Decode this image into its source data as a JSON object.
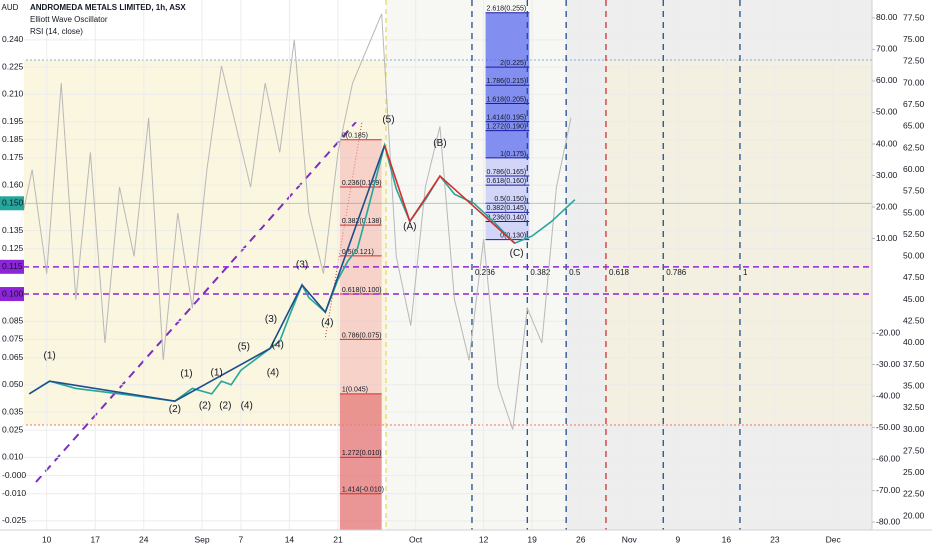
{
  "header": {
    "currency": "AUD",
    "title": "ANDROMEDA METALS LIMITED, 1h, ASX",
    "indicators": [
      "Elliott Wave Oscillator",
      "RSI (14, close)"
    ]
  },
  "chart_data": {
    "type": "line",
    "xlim": [
      -4.5,
      85
    ],
    "xticks": [
      {
        "value": 0,
        "label": "10"
      },
      {
        "value": 5,
        "label": "17"
      },
      {
        "value": 10,
        "label": "24"
      },
      {
        "value": 16,
        "label": "Sep"
      },
      {
        "value": 20,
        "label": "7"
      },
      {
        "value": 25,
        "label": "14"
      },
      {
        "value": 30,
        "label": "21"
      },
      {
        "value": 38,
        "label": "Oct"
      },
      {
        "value": 45,
        "label": "12"
      },
      {
        "value": 50,
        "label": "19"
      },
      {
        "value": 55,
        "label": "26"
      },
      {
        "value": 60,
        "label": "Nov"
      },
      {
        "value": 65,
        "label": "9"
      },
      {
        "value": 70,
        "label": "16"
      },
      {
        "value": 75,
        "label": "23"
      },
      {
        "value": 81,
        "label": "Dec"
      }
    ],
    "ylim": [
      -0.03,
      0.262
    ],
    "yticks": [
      {
        "value": 0.24,
        "label": "0.240"
      },
      0.225,
      {
        "value": 0.21,
        "label": "0.210"
      },
      0.195,
      0.185,
      0.175,
      {
        "value": 0.16,
        "label": "0.160"
      },
      0.135,
      0.125,
      0.085,
      0.075,
      0.065,
      {
        "value": 0.05,
        "label": "0.050"
      },
      0.035,
      0.025,
      {
        "value": 0.01,
        "label": "0.010"
      },
      {
        "value": 0,
        "label": "-0.000"
      },
      {
        "value": -0.01,
        "label": "-0.010"
      },
      -0.025
    ],
    "y2lim": [
      -82.5,
      85.7
    ],
    "y2ticks": [
      {
        "value": 80,
        "label": "80.00"
      },
      {
        "value": 70,
        "label": "70.00"
      },
      {
        "value": 60,
        "label": "60.00"
      },
      {
        "value": 50,
        "label": "50.00"
      },
      {
        "value": 40,
        "label": "40.00"
      },
      {
        "value": 30,
        "label": "30.00"
      },
      {
        "value": 20,
        "label": "20.00"
      },
      {
        "value": 10,
        "label": "10.00"
      },
      {
        "value": -20,
        "label": "-20.00"
      },
      {
        "value": -30,
        "label": "-30.00"
      },
      {
        "value": -40,
        "label": "-40.00"
      },
      {
        "value": -50,
        "label": "-50.00"
      },
      {
        "value": -60,
        "label": "-60.00"
      },
      {
        "value": -70,
        "label": "-70.00"
      },
      {
        "value": -80,
        "label": "-80.00"
      }
    ],
    "y3lim": [
      18.4,
      79.6
    ],
    "y3ticks": [
      {
        "value": 77.5,
        "label": "77.50"
      },
      {
        "value": 75,
        "label": "75.00"
      },
      {
        "value": 72.5,
        "label": "72.50"
      },
      {
        "value": 70,
        "label": "70.00"
      },
      {
        "value": 67.5,
        "label": "67.50"
      },
      {
        "value": 65,
        "label": "65.00"
      },
      {
        "value": 62.5,
        "label": "62.50"
      },
      {
        "value": 60,
        "label": "60.00"
      },
      {
        "value": 57.5,
        "label": "57.50"
      },
      {
        "value": 55,
        "label": "55.00"
      },
      {
        "value": 52.5,
        "label": "52.50"
      },
      {
        "value": 50,
        "label": "50.00"
      },
      {
        "value": 47.5,
        "label": "47.50"
      },
      {
        "value": 45,
        "label": "45.00"
      },
      {
        "value": 42.5,
        "label": "42.50"
      },
      {
        "value": 40,
        "label": "40.00"
      },
      {
        "value": 37.5,
        "label": "37.50"
      },
      {
        "value": 35,
        "label": "35.00"
      },
      {
        "value": 32.5,
        "label": "32.50"
      },
      {
        "value": 30,
        "label": "30.00"
      },
      {
        "value": 27.5,
        "label": "27.50"
      },
      {
        "value": 25,
        "label": "25.00"
      },
      {
        "value": 22.5,
        "label": "22.50"
      },
      {
        "value": 20,
        "label": "20.00"
      }
    ],
    "series": [
      {
        "color": "#b8b8b8",
        "axis": "y3",
        "x": [
          -3,
          -1.5,
          0,
          1.5,
          3,
          4.5,
          6,
          7.5,
          9,
          10.5,
          12,
          13.5,
          15,
          16.5,
          18,
          19.5,
          21,
          22.5,
          24,
          25.5,
          27,
          28.5,
          30,
          31.5,
          33,
          34.5,
          36,
          37.5,
          39,
          40.5,
          42,
          43.5,
          45,
          46.5,
          48,
          49.5,
          51,
          52.5,
          54
        ],
        "values": [
          52,
          60,
          48,
          70,
          45,
          62,
          40,
          58,
          50,
          66,
          38,
          55,
          44,
          60,
          72,
          65,
          58,
          70,
          62,
          75,
          55,
          48,
          62,
          70,
          74,
          78,
          50,
          42,
          58,
          65,
          45,
          38,
          52,
          35,
          30,
          44,
          40,
          58,
          66
        ]
      },
      {
        "color": "#26a69a",
        "x": [
          -1.8,
          0.3,
          3,
          6,
          9,
          13.2,
          15,
          17,
          18,
          19,
          20,
          21,
          22,
          23,
          24,
          25,
          26.3,
          27,
          28.7,
          30,
          31,
          32,
          33,
          34.8,
          36,
          37.4,
          39,
          40.5,
          42,
          44,
          46,
          48.2,
          50,
          52,
          54.4
        ],
        "values": [
          0.045,
          0.052,
          0.048,
          0.046,
          0.044,
          0.041,
          0.048,
          0.045,
          0.052,
          0.05,
          0.058,
          0.062,
          0.066,
          0.07,
          0.074,
          0.088,
          0.105,
          0.098,
          0.09,
          0.108,
          0.118,
          0.125,
          0.145,
          0.182,
          0.158,
          0.14,
          0.152,
          0.165,
          0.155,
          0.15,
          0.14,
          0.128,
          0.132,
          0.14,
          0.152
        ]
      },
      {
        "color": "#1e4f8c",
        "x": [
          -1.8,
          0.3,
          13.2,
          23,
          26.3,
          28.7,
          34.8
        ],
        "values": [
          0.045,
          0.052,
          0.041,
          0.07,
          0.105,
          0.09,
          0.182
        ]
      },
      {
        "color": "#d32f2f",
        "x": [
          34.8,
          37.4,
          40.5,
          48.2
        ],
        "values": [
          0.182,
          0.14,
          0.165,
          0.128
        ]
      }
    ],
    "annotations": [
      {
        "text": "(1)",
        "x": 0.3,
        "y": 0.066,
        "color": "#1e4f8c"
      },
      {
        "text": "(2)",
        "x": 13.2,
        "y": 0.0365,
        "color": "#1e4f8c"
      },
      {
        "text": "(1)",
        "x": 14.4,
        "y": 0.056,
        "color": "#1e4f8c"
      },
      {
        "text": "(2)",
        "x": 16.3,
        "y": 0.0385,
        "color": "#1e4f8c"
      },
      {
        "text": "(3)",
        "x": 26.3,
        "y": 0.116,
        "color": "#1e4f8c"
      },
      {
        "text": "(4)",
        "x": 23.3,
        "y": 0.0565,
        "color": "#1e4f8c"
      },
      {
        "text": "(4)",
        "x": 28.9,
        "y": 0.084,
        "color": "#1e4f8c"
      },
      {
        "text": "(5)",
        "x": 35.2,
        "y": 0.196,
        "color": "#1e4f8c"
      },
      {
        "text": "(1)",
        "x": 17.5,
        "y": 0.0565,
        "color": "#2db84d"
      },
      {
        "text": "(2)",
        "x": 18.4,
        "y": 0.0385,
        "color": "#2db84d"
      },
      {
        "text": "(4)",
        "x": 20.6,
        "y": 0.0385,
        "color": "#2db84d"
      },
      {
        "text": "(5)",
        "x": 20.3,
        "y": 0.071,
        "color": "#2db84d"
      },
      {
        "text": "(3)",
        "x": 23.1,
        "y": 0.086,
        "color": "#2db84d"
      },
      {
        "text": "(4)",
        "x": 23.8,
        "y": 0.072,
        "color": "#2db84d"
      },
      {
        "text": "(A)",
        "x": 37.4,
        "y": 0.137,
        "color": "#d32f2f"
      },
      {
        "text": "(B)",
        "x": 40.5,
        "y": 0.183,
        "color": "#d32f2f"
      },
      {
        "text": "(C)",
        "x": 48.4,
        "y": 0.1225,
        "color": "#d32f2f"
      }
    ],
    "fib_retracement": {
      "color": "#d32f2f",
      "x": [
        30.2,
        34.5
      ],
      "levels": [
        {
          "text": "0(0.185)",
          "price": 0.185
        },
        {
          "text": "0.236(0.159)",
          "price": 0.159
        },
        {
          "text": "0.382(0.138)",
          "price": 0.138
        },
        {
          "text": "0.5(0.121)",
          "price": 0.121
        },
        {
          "text": "0.618(0.100)",
          "price": 0.1
        },
        {
          "text": "0.786(0.075)",
          "price": 0.075
        },
        {
          "text": "1(0.045)",
          "price": 0.045
        },
        {
          "text": "1.272(0.010)",
          "price": 0.01
        },
        {
          "text": "1.414(-0.010)",
          "price": -0.01
        }
      ]
    },
    "fib_extension": {
      "color": "#1a1aa6",
      "x": [
        45.2,
        49.7
      ],
      "levels": [
        {
          "text": "2.618(0.255)",
          "price": 0.255
        },
        {
          "text": "2(0.225)",
          "price": 0.225
        },
        {
          "text": "1.786(0.215)",
          "price": 0.215
        },
        {
          "text": "1.618(0.205)",
          "price": 0.205
        },
        {
          "text": "1.414(0.195)",
          "price": 0.195
        },
        {
          "text": "1.272(0.190)",
          "price": 0.19
        },
        {
          "text": "1(0.175)",
          "price": 0.175
        },
        {
          "text": "0.786(0.165)",
          "price": 0.165
        },
        {
          "text": "0.618(0.160)",
          "price": 0.16
        },
        {
          "text": "0.5(0.150)",
          "price": 0.15
        },
        {
          "text": "0.382(0.145)",
          "price": 0.145
        },
        {
          "text": "0.236(0.140)",
          "price": 0.14
        },
        {
          "text": "0(0.130)",
          "price": 0.13
        }
      ]
    },
    "time_fib": {
      "price": 0.115,
      "lines": [
        {
          "label": "0.236",
          "x": 43.8,
          "color": "#1e4f8c"
        },
        {
          "label": "0.382",
          "x": 49.5,
          "color": "#1e4f8c"
        },
        {
          "label": "0.5",
          "x": 53.5,
          "color": "#1e4f8c"
        },
        {
          "label": "0.618",
          "x": 57.6,
          "color": "#d32f2f"
        },
        {
          "label": "0.786",
          "x": 63.5,
          "color": "#1e4f8c"
        },
        {
          "label": "1",
          "x": 71.4,
          "color": "#1e4f8c"
        }
      ]
    },
    "price_lines": [
      {
        "price": 0.15,
        "label": "0.150",
        "color": "#26a69a",
        "dash": false
      },
      {
        "price": 0.115,
        "label": "0.115",
        "color": "#8e24d9",
        "dash": true
      },
      {
        "price": 0.1,
        "label": "0.100",
        "color": "#8e24d9",
        "dash": true
      }
    ],
    "grid": true
  }
}
